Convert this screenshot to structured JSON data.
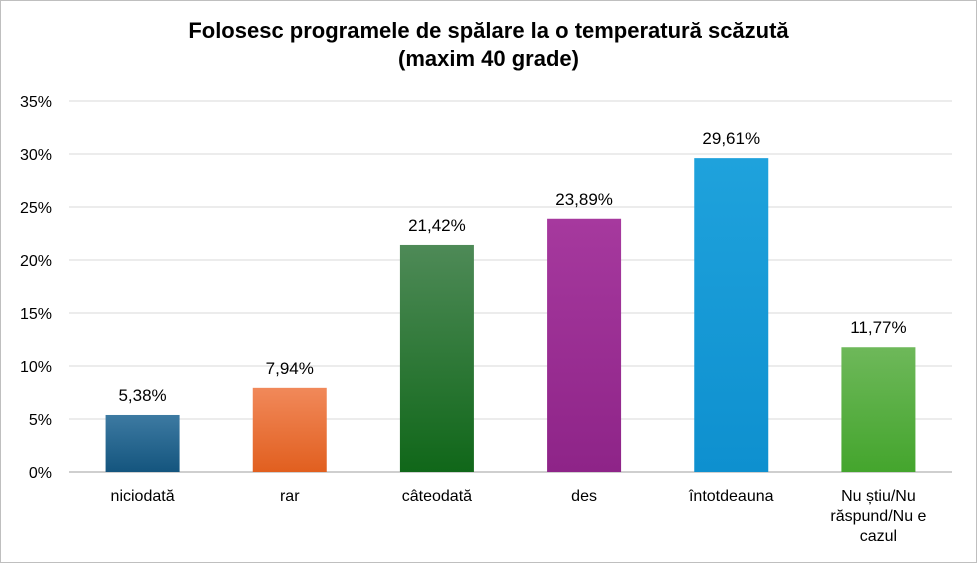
{
  "chart_data": {
    "type": "bar",
    "title_lines": [
      "Folosesc programele de spălare la o temperatură scăzută",
      "(maxim 40 grade)"
    ],
    "categories": [
      [
        "niciodată"
      ],
      [
        "rar"
      ],
      [
        "câteodată"
      ],
      [
        "des"
      ],
      [
        "întotdeauna"
      ],
      [
        "Nu știu/Nu",
        "răspund/Nu e",
        "cazul"
      ]
    ],
    "values": [
      5.38,
      7.94,
      21.42,
      23.89,
      29.61,
      11.77
    ],
    "value_labels": [
      "5,38%",
      "7,94%",
      "21,42%",
      "23,89%",
      "29,61%",
      "11,77%"
    ],
    "ylim": [
      0,
      35
    ],
    "yticks": [
      0,
      5,
      10,
      15,
      20,
      25,
      30,
      35
    ],
    "ytick_labels": [
      "0%",
      "5%",
      "10%",
      "15%",
      "20%",
      "25%",
      "30%",
      "35%"
    ],
    "grid": true,
    "legend": "none",
    "colors": [
      [
        "#3d7aa2",
        "#14557e"
      ],
      [
        "#f1895a",
        "#e15f1f"
      ],
      [
        "#4e8a57",
        "#106719"
      ],
      [
        "#a6399e",
        "#8e2488"
      ],
      [
        "#1fa2dc",
        "#0e90cf"
      ],
      [
        "#6eb85a",
        "#44a52d"
      ]
    ]
  }
}
